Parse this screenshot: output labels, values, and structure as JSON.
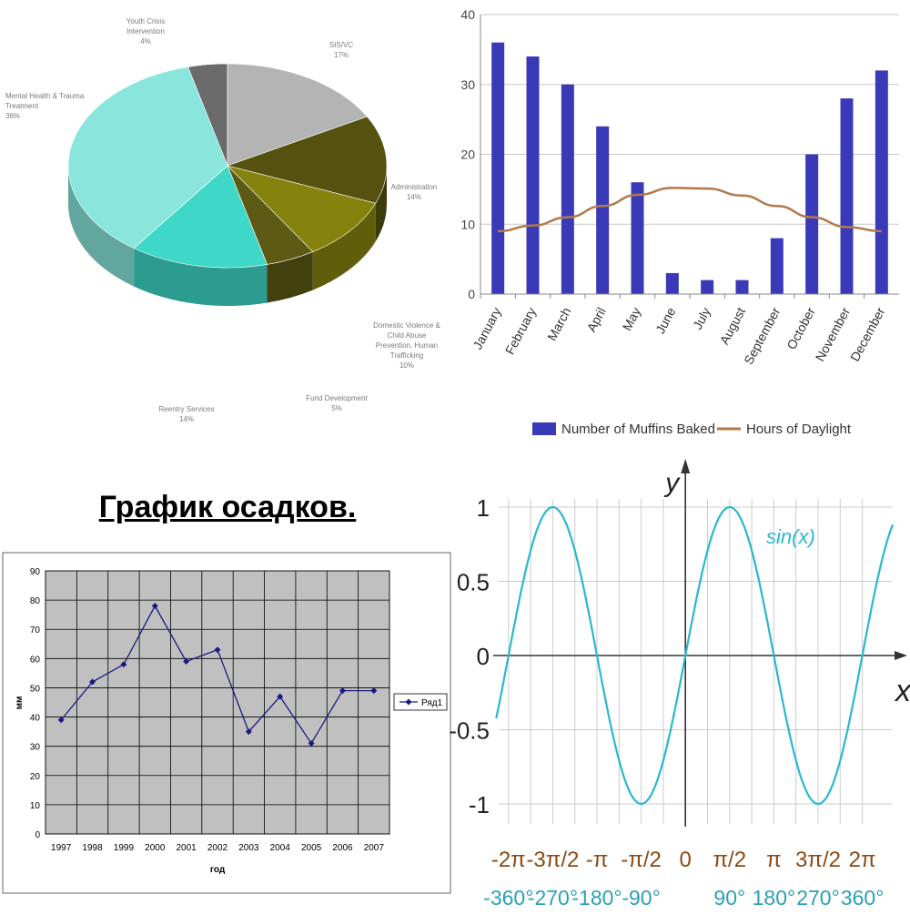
{
  "chart_data": [
    {
      "type": "pie",
      "title": "",
      "slices": [
        {
          "label": "Youth Crisis Intervention",
          "pct": "4%",
          "value": 4,
          "color": "#6b6b6b"
        },
        {
          "label": "SIS/VC",
          "pct": "17%",
          "value": 17,
          "color": "#b4b4b4"
        },
        {
          "label": "Administration",
          "pct": "14%",
          "value": 14,
          "color": "#55520f"
        },
        {
          "label": "Domestic Violence & Child Abuse Prevention, Human Trafficking",
          "pct": "10%",
          "value": 10,
          "color": "#85830e"
        },
        {
          "label": "Fund Development",
          "pct": "5%",
          "value": 5,
          "color": "#5c5a14"
        },
        {
          "label": "Reentry Services",
          "pct": "14%",
          "value": 14,
          "color": "#3fd8c8"
        },
        {
          "label": "Mental Health & Trauma Treatment",
          "pct": "36%",
          "value": 36,
          "color": "#8ae6dd"
        }
      ]
    },
    {
      "type": "bar",
      "title": "",
      "categories": [
        "January",
        "February",
        "March",
        "April",
        "May",
        "June",
        "July",
        "August",
        "September",
        "October",
        "November",
        "December"
      ],
      "series": [
        {
          "name": "Number of Muffins Baked",
          "kind": "bar",
          "color": "#3a3ab8",
          "values": [
            36,
            34,
            30,
            24,
            16,
            3,
            2,
            2,
            8,
            20,
            28,
            32
          ]
        },
        {
          "name": "Hours of Daylight",
          "kind": "line",
          "color": "#b07a4a",
          "values": [
            9,
            9.8,
            11,
            12.6,
            14.2,
            15.2,
            15.1,
            14.1,
            12.6,
            11,
            9.6,
            9
          ]
        }
      ],
      "ylim": [
        0,
        40
      ],
      "yticks": [
        "0",
        "10",
        "20",
        "30",
        "40"
      ],
      "grid": true,
      "legend": "bottom"
    },
    {
      "type": "line",
      "title": "График осадков.",
      "xlabel": "год",
      "ylabel": "мм",
      "x": [
        "1997",
        "1998",
        "1999",
        "2000",
        "2001",
        "2002",
        "2003",
        "2004",
        "2005",
        "2006",
        "2007"
      ],
      "series": [
        {
          "name": "Ряд1",
          "color": "#1a1a80",
          "values": [
            39,
            52,
            58,
            78,
            59,
            63,
            35,
            47,
            31,
            49,
            49
          ]
        }
      ],
      "ylim": [
        0,
        90
      ],
      "yticks": [
        "0",
        "10",
        "20",
        "30",
        "40",
        "50",
        "60",
        "70",
        "80",
        "90"
      ],
      "grid": true,
      "legend": "right"
    },
    {
      "type": "line",
      "title": "",
      "function_label": "sin(x)",
      "xlabel": "x",
      "ylabel": "y",
      "xlim_deg": [
        -380,
        420
      ],
      "ylim": [
        -1.2,
        1.2
      ],
      "yticks": [
        "1",
        "0.5",
        "0",
        "-0.5",
        "-1"
      ],
      "xticks_rad": [
        "-2π",
        "-3π/2",
        "-π",
        "-π/2",
        "0",
        "π/2",
        "π",
        "3π/2",
        "2π"
      ],
      "xticks_deg": [
        "-360°",
        "-270°",
        "-180°",
        "-90°",
        "",
        "90°",
        "180°",
        "270°",
        "360°"
      ],
      "color": "#29b8cf",
      "grid": true
    }
  ]
}
